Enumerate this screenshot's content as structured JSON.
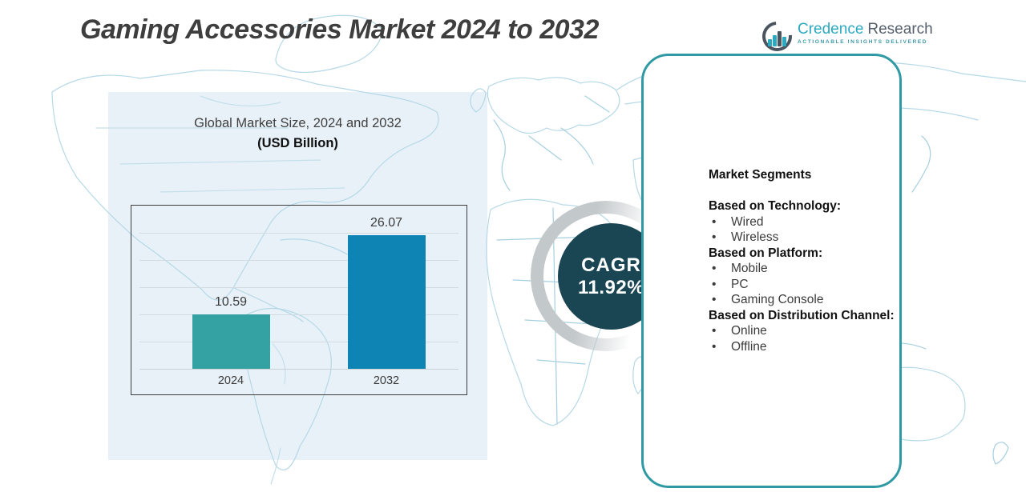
{
  "title": "Gaming Accessories Market 2024 to 2032",
  "logo": {
    "brand_primary": "Credence",
    "brand_secondary": "Research",
    "tagline": "ACTIONABLE INSIGHTS DELIVERED",
    "icon": "bar-chart-ring-icon"
  },
  "chart_data": {
    "type": "bar",
    "title": "Global Market Size, 2024 and 2032",
    "subtitle": "(USD Billion)",
    "categories": [
      "2024",
      "2032"
    ],
    "values": [
      10.59,
      26.07
    ],
    "value_labels": [
      "10.59",
      "26.07"
    ],
    "bar_colors": [
      "#34a2a2",
      "#0e84b4"
    ],
    "ylabel": "",
    "xlabel": "",
    "ylim": [
      0,
      30
    ],
    "grid": true,
    "legend": "none"
  },
  "cagr": {
    "label": "CAGR",
    "value": "11.92%"
  },
  "segments": {
    "heading": "Market Segments",
    "groups": [
      {
        "label": "Based on Technology:",
        "items": [
          "Wired",
          "Wireless"
        ]
      },
      {
        "label": "Based on Platform:",
        "items": [
          "Mobile",
          "PC",
          "Gaming Console"
        ]
      },
      {
        "label": "Based on Distribution Channel:",
        "items": [
          "Online",
          "Offline"
        ]
      }
    ]
  },
  "colors": {
    "title_text": "#3e3e3e",
    "backdrop": "#e8f1f8",
    "map_stroke": "#b5d8e7",
    "bar_2024": "#34a2a2",
    "bar_2032": "#0e84b4",
    "cagr_circle": "#1a4653",
    "panel_border": "#2f9aa3",
    "logo_teal": "#2aa9c0",
    "logo_gray": "#55606c"
  }
}
